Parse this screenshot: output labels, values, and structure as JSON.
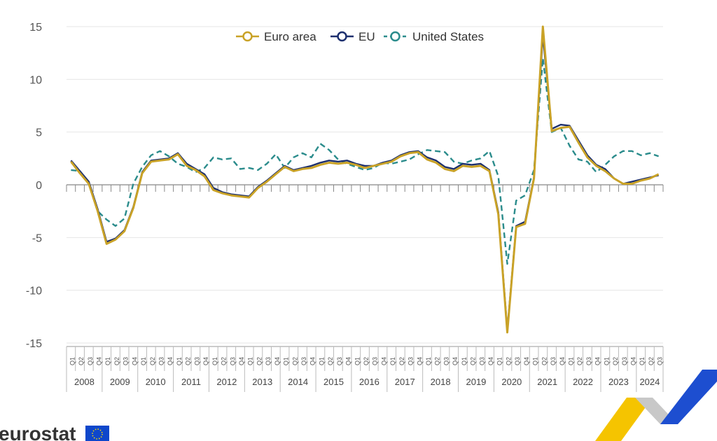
{
  "chart_data": {
    "type": "line",
    "title": "",
    "xlabel": "",
    "ylabel": "",
    "ylim": [
      -15,
      15
    ],
    "yticks": [
      "15",
      "10",
      "5",
      "0",
      "-5",
      "-10",
      "-15"
    ],
    "ytick_values": [
      15,
      10,
      5,
      0,
      -5,
      -10,
      -15
    ],
    "years": [
      "2008",
      "2009",
      "2010",
      "2011",
      "2012",
      "2013",
      "2014",
      "2015",
      "2016",
      "2017",
      "2018",
      "2019",
      "2020",
      "2021",
      "2022",
      "2023",
      "2024"
    ],
    "quarter_labels": [
      "Q1",
      "Q2",
      "Q3",
      "Q4"
    ],
    "categories": [
      "2008Q1",
      "2008Q2",
      "2008Q3",
      "2008Q4",
      "2009Q1",
      "2009Q2",
      "2009Q3",
      "2009Q4",
      "2010Q1",
      "2010Q2",
      "2010Q3",
      "2010Q4",
      "2011Q1",
      "2011Q2",
      "2011Q3",
      "2011Q4",
      "2012Q1",
      "2012Q2",
      "2012Q3",
      "2012Q4",
      "2013Q1",
      "2013Q2",
      "2013Q3",
      "2013Q4",
      "2014Q1",
      "2014Q2",
      "2014Q3",
      "2014Q4",
      "2015Q1",
      "2015Q2",
      "2015Q3",
      "2015Q4",
      "2016Q1",
      "2016Q2",
      "2016Q3",
      "2016Q4",
      "2017Q1",
      "2017Q2",
      "2017Q3",
      "2017Q4",
      "2018Q1",
      "2018Q2",
      "2018Q3",
      "2018Q4",
      "2019Q1",
      "2019Q2",
      "2019Q3",
      "2019Q4",
      "2020Q1",
      "2020Q2",
      "2020Q3",
      "2020Q4",
      "2021Q1",
      "2021Q2",
      "2021Q3",
      "2021Q4",
      "2022Q1",
      "2022Q2",
      "2022Q3",
      "2022Q4",
      "2023Q1",
      "2023Q2",
      "2023Q3",
      "2023Q4",
      "2024Q1",
      "2024Q2",
      "2024Q3"
    ],
    "series": [
      {
        "name": "Euro area",
        "color": "#c9a227",
        "style": "solid",
        "values": [
          2.2,
          1.1,
          0.1,
          -2.5,
          -5.6,
          -5.2,
          -4.4,
          -2.2,
          1.1,
          2.2,
          2.3,
          2.4,
          2.9,
          1.8,
          1.4,
          0.8,
          -0.5,
          -0.8,
          -1.0,
          -1.1,
          -1.2,
          -0.3,
          0.3,
          1.0,
          1.7,
          1.3,
          1.5,
          1.6,
          1.9,
          2.1,
          2.0,
          2.1,
          1.9,
          1.6,
          1.8,
          2.0,
          2.2,
          2.7,
          3.0,
          3.1,
          2.4,
          2.1,
          1.5,
          1.3,
          1.8,
          1.7,
          1.8,
          1.3,
          -2.8,
          -14.0,
          -4.0,
          -3.7,
          0.6,
          15.0,
          5.1,
          5.4,
          5.5,
          4.0,
          2.6,
          1.8,
          1.3,
          0.6,
          0.1,
          0.1,
          0.4,
          0.6,
          1.0
        ]
      },
      {
        "name": "EU",
        "color": "#1c2f6e",
        "style": "solid",
        "values": [
          2.3,
          1.3,
          0.3,
          -2.3,
          -5.4,
          -5.1,
          -4.3,
          -2.1,
          1.2,
          2.3,
          2.4,
          2.5,
          3.0,
          2.0,
          1.5,
          1.0,
          -0.3,
          -0.7,
          -0.9,
          -1.0,
          -1.1,
          -0.2,
          0.4,
          1.1,
          1.8,
          1.4,
          1.6,
          1.8,
          2.1,
          2.3,
          2.2,
          2.3,
          2.0,
          1.8,
          1.8,
          2.1,
          2.3,
          2.8,
          3.1,
          3.2,
          2.6,
          2.3,
          1.7,
          1.5,
          2.0,
          1.9,
          2.0,
          1.4,
          -2.6,
          -13.8,
          -3.9,
          -3.5,
          0.7,
          14.2,
          5.3,
          5.7,
          5.6,
          4.2,
          2.8,
          1.9,
          1.5,
          0.6,
          0.1,
          0.3,
          0.5,
          0.7,
          0.9
        ]
      },
      {
        "name": "United States",
        "color": "#2b8c8c",
        "style": "dashed",
        "values": [
          1.4,
          1.3,
          0.1,
          -2.5,
          -3.3,
          -3.9,
          -3.2,
          0.1,
          1.7,
          2.8,
          3.2,
          2.7,
          2.0,
          1.7,
          1.2,
          1.6,
          2.6,
          2.4,
          2.5,
          1.5,
          1.6,
          1.4,
          2.0,
          2.9,
          1.6,
          2.6,
          3.0,
          2.6,
          3.9,
          3.3,
          2.4,
          2.0,
          1.7,
          1.4,
          1.6,
          2.1,
          2.0,
          2.2,
          2.4,
          2.9,
          3.3,
          3.2,
          3.1,
          2.2,
          2.0,
          2.3,
          2.5,
          3.2,
          0.8,
          -7.5,
          -1.5,
          -1.0,
          1.4,
          12.0,
          5.0,
          5.4,
          3.7,
          2.4,
          2.2,
          1.2,
          1.9,
          2.7,
          3.2,
          3.2,
          2.8,
          3.0,
          2.7
        ]
      }
    ],
    "legend_position": "top",
    "grid": true
  },
  "logo": {
    "text": "eurostat",
    "flag_color": "#0e47cb"
  }
}
